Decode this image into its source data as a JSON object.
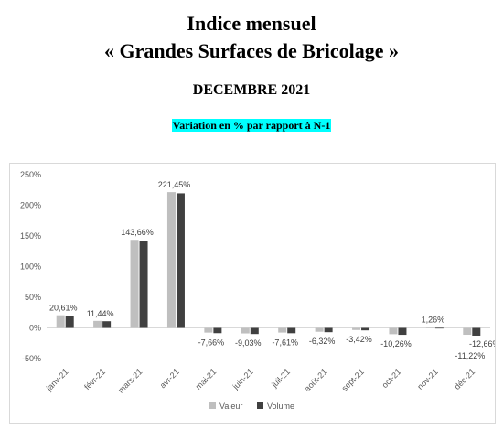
{
  "header": {
    "title_line1": "Indice mensuel",
    "title_line2": "« Grandes Surfaces de Bricolage »",
    "period": "DECEMBRE 2021",
    "subtitle": "Variation en % par rapport à N-1"
  },
  "chart_data": {
    "type": "bar",
    "categories": [
      "janv-21",
      "févr-21",
      "mars-21",
      "avr-21",
      "mai-21",
      "juin-21",
      "juil-21",
      "août-21",
      "sept-21",
      "oct-21",
      "nov-21",
      "déc-21"
    ],
    "series": [
      {
        "name": "Valeur",
        "color": "#bfbfbf",
        "values": [
          20.61,
          11.44,
          143.66,
          221.45,
          -7.66,
          -9.03,
          -7.61,
          -6.32,
          -3.42,
          -10.26,
          1.26,
          -11.22
        ]
      },
      {
        "name": "Volume",
        "color": "#404040",
        "values": [
          19.8,
          10.9,
          142.5,
          219.5,
          -8.6,
          -10.0,
          -8.7,
          -7.0,
          -4.0,
          -11.3,
          0.2,
          -12.66
        ]
      }
    ],
    "data_labels": [
      "20,61%",
      "11,44%",
      "143,66%",
      "221,45%",
      "-7,66%",
      "-9,03%",
      "-7,61%",
      "-6,32%",
      "-3,42%",
      "-10,26%",
      "1,26%",
      "-11,22%"
    ],
    "volume_data_labels": {
      "11": "-12,66%"
    },
    "y_ticks": [
      "250%",
      "200%",
      "150%",
      "100%",
      "50%",
      "0%",
      "-50%"
    ],
    "ylim": [
      -50,
      250
    ],
    "y_step": 50,
    "legend_position": "bottom",
    "grid": false
  }
}
